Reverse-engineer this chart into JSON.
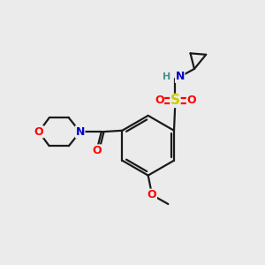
{
  "bg_color": "#ebebeb",
  "bond_color": "#1a1a1a",
  "atom_colors": {
    "O": "#ff0000",
    "N": "#0000cc",
    "S": "#cccc00",
    "H": "#4a9090",
    "C": "#1a1a1a"
  },
  "font_size": 9,
  "bond_width": 1.6,
  "figsize": [
    3.0,
    3.0
  ],
  "dpi": 100
}
